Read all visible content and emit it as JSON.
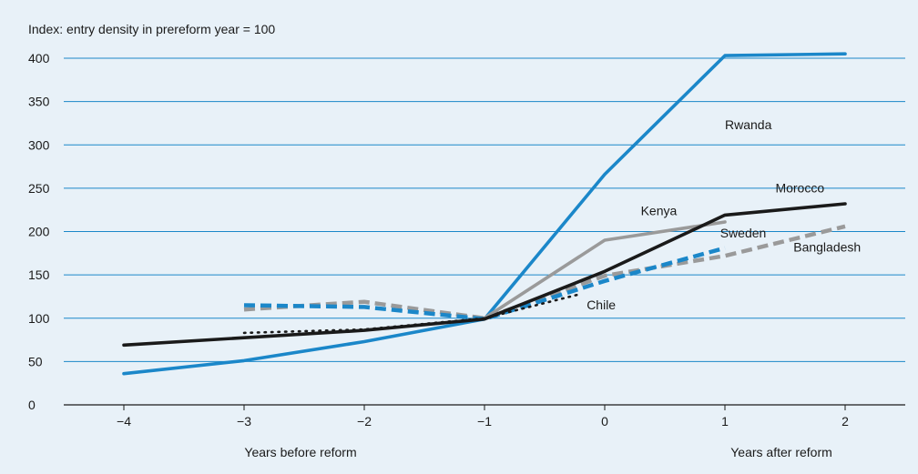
{
  "chart_data": {
    "type": "line",
    "y_caption": "Index: entry density in prereform year = 100",
    "xlabel_left": "Years before reform",
    "xlabel_right": "Years after reform",
    "xlim": [
      -4.5,
      2.5
    ],
    "ylim": [
      0,
      400
    ],
    "x_ticks": [
      -4,
      -3,
      -2,
      -1,
      0,
      1,
      2
    ],
    "x_tick_labels": [
      "−4",
      "−3",
      "−2",
      "−1",
      "0",
      "1",
      "2"
    ],
    "y_ticks": [
      0,
      50,
      100,
      150,
      200,
      250,
      300,
      350,
      400
    ],
    "grid": "horizontal",
    "colors": {
      "blue": "#1b87c9",
      "black": "#1a1a1a",
      "gray": "#9a9a9a"
    },
    "series": [
      {
        "name": "Rwanda",
        "color": "#1b87c9",
        "dash": "solid",
        "points": [
          [
            -4,
            36
          ],
          [
            -3,
            51
          ],
          [
            -2,
            73
          ],
          [
            -1,
            99
          ],
          [
            0,
            266
          ],
          [
            1,
            403
          ],
          [
            2,
            405
          ]
        ],
        "label_at": [
          1.0,
          318
        ]
      },
      {
        "name": "Morocco",
        "color": "#1a1a1a",
        "dash": "solid",
        "points": [
          [
            -4,
            69
          ],
          [
            -2,
            86
          ],
          [
            -1,
            99
          ],
          [
            0,
            154
          ],
          [
            1,
            219
          ],
          [
            2,
            232
          ]
        ],
        "label_at": [
          1.42,
          245
        ]
      },
      {
        "name": "Kenya",
        "color": "#9a9a9a",
        "dash": "solid",
        "points": [
          [
            -1,
            100
          ],
          [
            0,
            190
          ],
          [
            1,
            211
          ]
        ],
        "label_at": [
          0.3,
          219
        ]
      },
      {
        "name": "Bangladesh",
        "color": "#9a9a9a",
        "dash": "dash",
        "points": [
          [
            -3,
            110
          ],
          [
            -2,
            119
          ],
          [
            -1,
            100
          ],
          [
            0,
            149
          ],
          [
            1,
            172
          ],
          [
            2,
            206
          ]
        ],
        "label_at": [
          1.57,
          177
        ]
      },
      {
        "name": "Sweden",
        "color": "#1b87c9",
        "dash": "dash",
        "points": [
          [
            -3,
            115
          ],
          [
            -2,
            113
          ],
          [
            -1,
            99
          ],
          [
            0,
            143
          ],
          [
            1,
            181
          ]
        ],
        "label_at": [
          0.96,
          193
        ]
      },
      {
        "name": "Chile",
        "color": "#1a1a1a",
        "dash": "dot",
        "points": [
          [
            -3,
            83
          ],
          [
            -2,
            87
          ],
          [
            -1,
            100
          ],
          [
            -0.2,
            128
          ]
        ],
        "label_at": [
          -0.15,
          110
        ]
      }
    ]
  }
}
